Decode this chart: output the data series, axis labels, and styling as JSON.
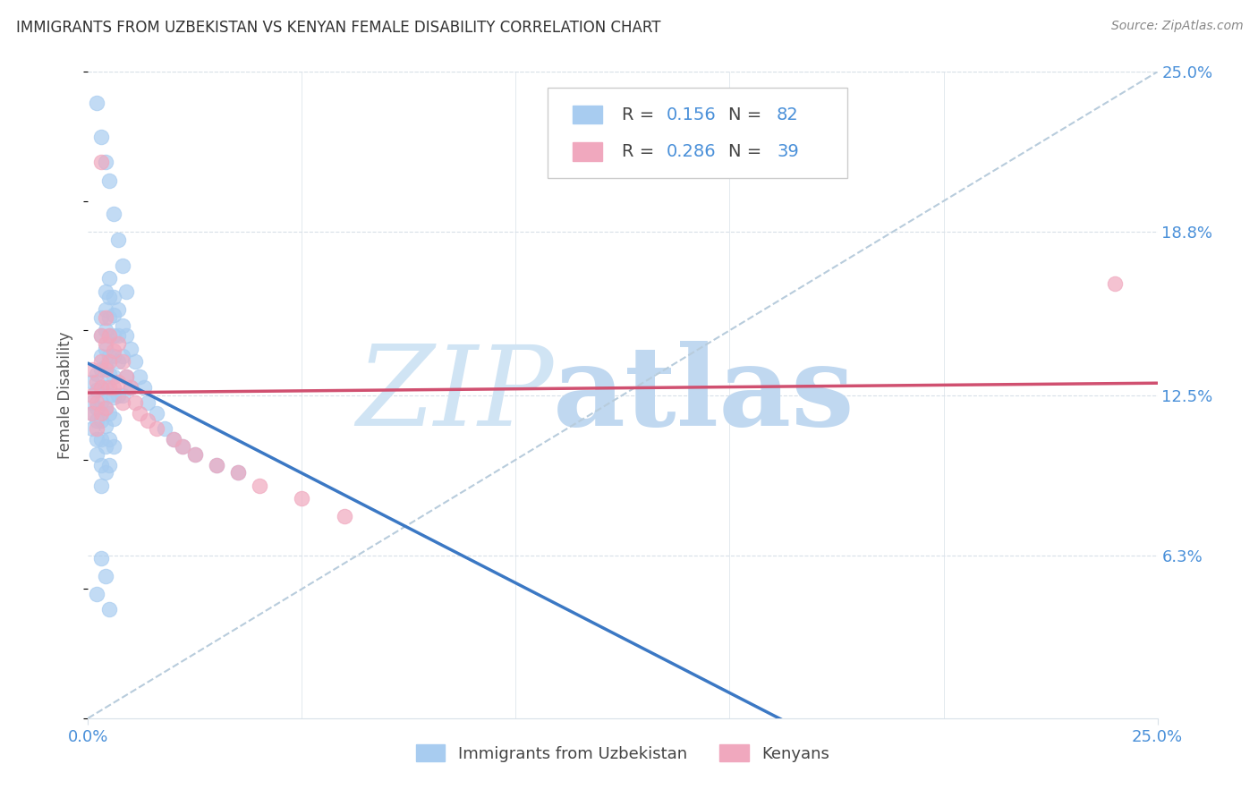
{
  "title": "IMMIGRANTS FROM UZBEKISTAN VS KENYAN FEMALE DISABILITY CORRELATION CHART",
  "source_text": "Source: ZipAtlas.com",
  "ylabel": "Female Disability",
  "xlim": [
    0.0,
    0.25
  ],
  "ylim": [
    0.0,
    0.25
  ],
  "ytick_vals": [
    0.063,
    0.125,
    0.188,
    0.25
  ],
  "ytick_labels": [
    "6.3%",
    "12.5%",
    "18.8%",
    "25.0%"
  ],
  "xtick_vals": [
    0.0,
    0.25
  ],
  "xtick_labels": [
    "0.0%",
    "25.0%"
  ],
  "color_blue": "#A8CCF0",
  "color_pink": "#F0A8BE",
  "color_blue_text": "#4A90D9",
  "trendline_blue_color": "#3B78C4",
  "trendline_pink_color": "#D05070",
  "dashed_line_color": "#B8CCDC",
  "grid_color": "#D8E0E8",
  "watermark_zip_color": "#D0E4F4",
  "watermark_atlas_color": "#C0D8F0",
  "title_color": "#333333",
  "source_color": "#888888",
  "label_color": "#555555",
  "tick_color": "#4A90D9",
  "legend_R1": "0.156",
  "legend_N1": "82",
  "legend_R2": "0.286",
  "legend_N2": "39",
  "blue_x": [
    0.001,
    0.001,
    0.001,
    0.001,
    0.002,
    0.002,
    0.002,
    0.002,
    0.002,
    0.002,
    0.003,
    0.003,
    0.003,
    0.003,
    0.003,
    0.003,
    0.003,
    0.003,
    0.003,
    0.003,
    0.004,
    0.004,
    0.004,
    0.004,
    0.004,
    0.004,
    0.004,
    0.004,
    0.004,
    0.004,
    0.005,
    0.005,
    0.005,
    0.005,
    0.005,
    0.005,
    0.005,
    0.005,
    0.005,
    0.005,
    0.006,
    0.006,
    0.006,
    0.006,
    0.006,
    0.006,
    0.006,
    0.006,
    0.007,
    0.007,
    0.007,
    0.007,
    0.008,
    0.008,
    0.008,
    0.009,
    0.009,
    0.01,
    0.01,
    0.011,
    0.012,
    0.013,
    0.014,
    0.016,
    0.018,
    0.02,
    0.022,
    0.025,
    0.03,
    0.035,
    0.002,
    0.003,
    0.004,
    0.005,
    0.006,
    0.007,
    0.008,
    0.009,
    0.003,
    0.004,
    0.002,
    0.005
  ],
  "blue_y": [
    0.13,
    0.122,
    0.118,
    0.112,
    0.133,
    0.127,
    0.12,
    0.115,
    0.108,
    0.102,
    0.155,
    0.148,
    0.14,
    0.135,
    0.128,
    0.122,
    0.115,
    0.108,
    0.098,
    0.09,
    0.165,
    0.158,
    0.15,
    0.143,
    0.136,
    0.128,
    0.12,
    0.113,
    0.105,
    0.095,
    0.17,
    0.163,
    0.155,
    0.148,
    0.14,
    0.133,
    0.125,
    0.118,
    0.108,
    0.098,
    0.163,
    0.156,
    0.148,
    0.14,
    0.132,
    0.124,
    0.116,
    0.105,
    0.158,
    0.148,
    0.138,
    0.125,
    0.152,
    0.14,
    0.125,
    0.148,
    0.132,
    0.143,
    0.128,
    0.138,
    0.132,
    0.128,
    0.122,
    0.118,
    0.112,
    0.108,
    0.105,
    0.102,
    0.098,
    0.095,
    0.238,
    0.225,
    0.215,
    0.208,
    0.195,
    0.185,
    0.175,
    0.165,
    0.062,
    0.055,
    0.048,
    0.042
  ],
  "pink_x": [
    0.001,
    0.001,
    0.001,
    0.002,
    0.002,
    0.002,
    0.003,
    0.003,
    0.003,
    0.003,
    0.004,
    0.004,
    0.004,
    0.004,
    0.005,
    0.005,
    0.005,
    0.006,
    0.006,
    0.007,
    0.007,
    0.008,
    0.008,
    0.009,
    0.01,
    0.011,
    0.012,
    0.014,
    0.016,
    0.02,
    0.022,
    0.025,
    0.03,
    0.035,
    0.04,
    0.05,
    0.06,
    0.24,
    0.003
  ],
  "pink_y": [
    0.135,
    0.125,
    0.118,
    0.13,
    0.122,
    0.112,
    0.148,
    0.138,
    0.128,
    0.118,
    0.155,
    0.145,
    0.135,
    0.12,
    0.148,
    0.138,
    0.128,
    0.142,
    0.128,
    0.145,
    0.13,
    0.138,
    0.122,
    0.132,
    0.128,
    0.122,
    0.118,
    0.115,
    0.112,
    0.108,
    0.105,
    0.102,
    0.098,
    0.095,
    0.09,
    0.085,
    0.078,
    0.168,
    0.215
  ]
}
